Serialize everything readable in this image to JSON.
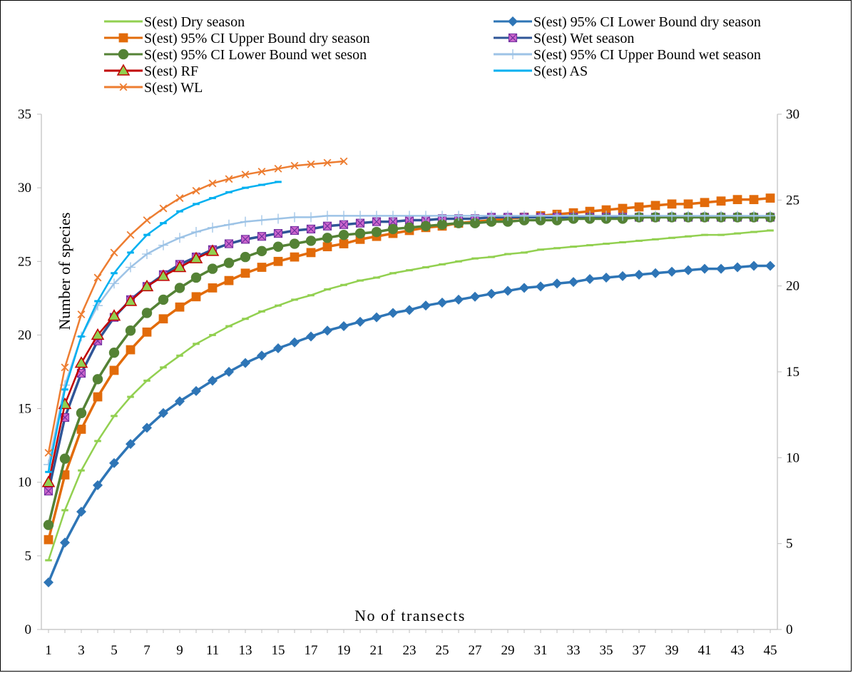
{
  "chart_data": {
    "type": "line",
    "xlabel": "No of transects",
    "ylabel": "Number of species",
    "x_ticks": [
      1,
      3,
      5,
      7,
      9,
      11,
      13,
      15,
      17,
      19,
      21,
      23,
      25,
      27,
      29,
      31,
      33,
      35,
      37,
      39,
      41,
      43,
      45
    ],
    "y_left": {
      "min": 0,
      "max": 35,
      "ticks": [
        0,
        5,
        10,
        15,
        20,
        25,
        30,
        35
      ]
    },
    "y_right": {
      "min": 0,
      "max": 30,
      "ticks": [
        0,
        5,
        10,
        15,
        20,
        25,
        30
      ]
    },
    "xlim": [
      1,
      45
    ],
    "grid": false,
    "legend_position": "top",
    "series": [
      {
        "name": "S(est) Dry season",
        "color": "#92D050",
        "marker": "dash",
        "values": [
          4.7,
          8.1,
          10.8,
          12.8,
          14.5,
          15.8,
          16.9,
          17.8,
          18.6,
          19.4,
          20.0,
          20.6,
          21.1,
          21.6,
          22.0,
          22.4,
          22.7,
          23.1,
          23.4,
          23.7,
          23.9,
          24.2,
          24.4,
          24.6,
          24.8,
          25.0,
          25.2,
          25.3,
          25.5,
          25.6,
          25.8,
          25.9,
          26.0,
          26.1,
          26.2,
          26.3,
          26.4,
          26.5,
          26.6,
          26.7,
          26.8,
          26.8,
          26.9,
          27.0,
          27.1
        ]
      },
      {
        "name": "S(est) 95% CI Lower Bound dry season",
        "color": "#2E75B6",
        "marker": "diamond",
        "values": [
          3.2,
          5.9,
          8.0,
          9.8,
          11.3,
          12.6,
          13.7,
          14.7,
          15.5,
          16.2,
          16.9,
          17.5,
          18.1,
          18.6,
          19.1,
          19.5,
          19.9,
          20.3,
          20.6,
          20.9,
          21.2,
          21.5,
          21.7,
          22.0,
          22.2,
          22.4,
          22.6,
          22.8,
          23.0,
          23.2,
          23.3,
          23.5,
          23.6,
          23.8,
          23.9,
          24.0,
          24.1,
          24.2,
          24.3,
          24.4,
          24.5,
          24.5,
          24.6,
          24.7,
          24.7
        ]
      },
      {
        "name": "S(est) 95% CI Upper Bound dry season",
        "color": "#E26B0A",
        "marker": "square",
        "values": [
          6.1,
          10.5,
          13.6,
          15.8,
          17.6,
          19.0,
          20.2,
          21.1,
          21.9,
          22.6,
          23.2,
          23.7,
          24.2,
          24.6,
          25.0,
          25.3,
          25.6,
          26.0,
          26.2,
          26.5,
          26.7,
          26.9,
          27.1,
          27.3,
          27.4,
          27.6,
          27.7,
          27.8,
          27.9,
          28.0,
          28.1,
          28.2,
          28.3,
          28.4,
          28.5,
          28.6,
          28.7,
          28.8,
          28.9,
          28.9,
          29.0,
          29.1,
          29.2,
          29.2,
          29.3
        ]
      },
      {
        "name": "S(est) Wet season",
        "color": "#2F5597",
        "marker": "xsquare",
        "values": [
          9.4,
          14.4,
          17.4,
          19.6,
          21.2,
          22.4,
          23.3,
          24.1,
          24.8,
          25.3,
          25.8,
          26.2,
          26.5,
          26.7,
          26.9,
          27.1,
          27.2,
          27.4,
          27.5,
          27.6,
          27.7,
          27.7,
          27.8,
          27.8,
          27.9,
          27.9,
          27.9,
          28.0,
          28.0,
          28.0,
          28.0,
          28.0,
          28.0,
          28.0,
          28.0,
          28.0,
          28.0,
          28.0,
          28.0,
          28.0,
          28.0,
          28.0,
          28.0,
          28.0,
          28.0
        ]
      },
      {
        "name": "S(est) 95% CI Lower Bound wet seson",
        "color": "#548235",
        "marker": "circle",
        "values": [
          7.1,
          11.6,
          14.7,
          17.0,
          18.8,
          20.3,
          21.5,
          22.4,
          23.2,
          23.9,
          24.5,
          24.9,
          25.3,
          25.7,
          26.0,
          26.2,
          26.4,
          26.6,
          26.8,
          26.9,
          27.0,
          27.2,
          27.3,
          27.4,
          27.5,
          27.6,
          27.6,
          27.7,
          27.7,
          27.8,
          27.8,
          27.8,
          27.9,
          27.9,
          27.9,
          27.9,
          28.0,
          28.0,
          28.0,
          28.0,
          28.0,
          28.0,
          28.0,
          28.0,
          28.0
        ]
      },
      {
        "name": "S(est) 95% CI Upper Bound wet season",
        "color": "#9DC3E6",
        "marker": "plus",
        "values": [
          11.2,
          16.6,
          19.9,
          22.0,
          23.5,
          24.6,
          25.5,
          26.1,
          26.6,
          27.0,
          27.3,
          27.5,
          27.7,
          27.8,
          27.9,
          28.0,
          28.0,
          28.1,
          28.1,
          28.1,
          28.1,
          28.1,
          28.1,
          28.1,
          28.1,
          28.1,
          28.1,
          28.1,
          28.1,
          28.1,
          28.1,
          28.1,
          28.1,
          28.1,
          28.1,
          28.1,
          28.1,
          28.1,
          28.1,
          28.1,
          28.1,
          28.1,
          28.1,
          28.1,
          28.1
        ]
      },
      {
        "name": "S(est) RF",
        "color": "#C00000",
        "marker": "triangle",
        "values": [
          10.0,
          15.3,
          18.1,
          20.0,
          21.3,
          22.3,
          23.3,
          24.0,
          24.6,
          25.2,
          25.7
        ]
      },
      {
        "name": "S(est) AS",
        "color": "#00B0F0",
        "marker": "dash",
        "values": [
          10.7,
          16.3,
          19.9,
          22.3,
          24.2,
          25.6,
          26.8,
          27.6,
          28.4,
          28.9,
          29.3,
          29.7,
          30.0,
          30.2,
          30.4
        ]
      },
      {
        "name": "S(est) WL",
        "color": "#ED7D31",
        "marker": "x",
        "values": [
          12.0,
          17.8,
          21.4,
          23.9,
          25.6,
          26.8,
          27.8,
          28.6,
          29.3,
          29.8,
          30.3,
          30.6,
          30.9,
          31.1,
          31.3,
          31.5,
          31.6,
          31.7,
          31.8
        ]
      }
    ]
  }
}
